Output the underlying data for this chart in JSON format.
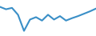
{
  "y_values": [
    13.5,
    12.8,
    13.2,
    11.2,
    6.5,
    9.8,
    10.5,
    9.5,
    11.2,
    9.8,
    10.8,
    9.5,
    10.2,
    10.8,
    11.5,
    12.2,
    13.0
  ],
  "line_color": "#3a8fc7",
  "linewidth": 1.5,
  "background_color": "#ffffff",
  "ylim_min": 5.0,
  "ylim_max": 15.5
}
